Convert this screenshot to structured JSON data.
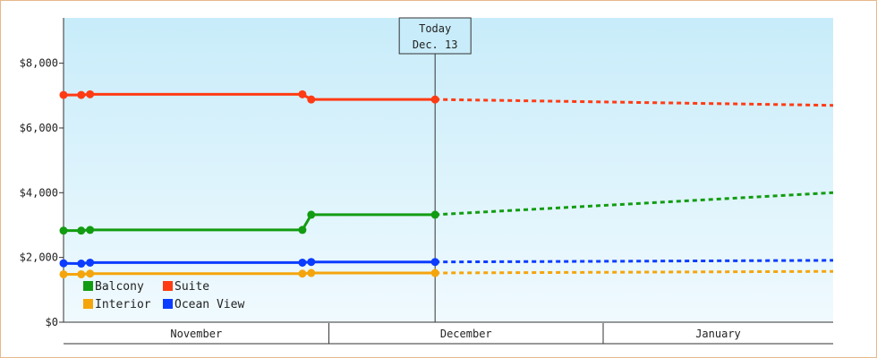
{
  "chart_data": {
    "type": "line",
    "x_axis": {
      "months": [
        {
          "label": "November",
          "start": "2023-11-01",
          "end": "2023-11-30"
        },
        {
          "label": "December",
          "start": "2023-12-01",
          "end": "2023-12-31"
        },
        {
          "label": "January",
          "start": "2024-01-01",
          "end": "2024-01-31"
        }
      ],
      "range": [
        "2023-11-01",
        "2024-01-27"
      ]
    },
    "y_axis": {
      "ylim": [
        0,
        9400
      ],
      "ticks": [
        {
          "value": 0,
          "label": "$0"
        },
        {
          "value": 2000,
          "label": "$2,000"
        },
        {
          "value": 4000,
          "label": "$4,000"
        },
        {
          "value": 6000,
          "label": "$6,000"
        },
        {
          "value": 8000,
          "label": "$8,000"
        }
      ]
    },
    "today": {
      "date": "2023-12-13",
      "line1": "Today",
      "line2": "Dec. 13"
    },
    "series": [
      {
        "name": "Suite",
        "color": "#ff3b14",
        "history": [
          [
            "2023-11-01",
            7020
          ],
          [
            "2023-11-03",
            7020
          ],
          [
            "2023-11-04",
            7040
          ],
          [
            "2023-11-28",
            7040
          ],
          [
            "2023-11-29",
            6880
          ],
          [
            "2023-12-13",
            6880
          ]
        ],
        "forecast": [
          [
            "2023-12-13",
            6880
          ],
          [
            "2024-01-27",
            6700
          ]
        ],
        "markers": [
          "2023-11-01",
          "2023-11-03",
          "2023-11-04",
          "2023-11-28",
          "2023-11-29",
          "2023-12-13"
        ]
      },
      {
        "name": "Balcony",
        "color": "#129c12",
        "history": [
          [
            "2023-11-01",
            2830
          ],
          [
            "2023-11-03",
            2830
          ],
          [
            "2023-11-04",
            2850
          ],
          [
            "2023-11-28",
            2850
          ],
          [
            "2023-11-29",
            3320
          ],
          [
            "2023-12-13",
            3320
          ]
        ],
        "forecast": [
          [
            "2023-12-13",
            3320
          ],
          [
            "2024-01-27",
            4000
          ]
        ],
        "markers": [
          "2023-11-01",
          "2023-11-03",
          "2023-11-04",
          "2023-11-28",
          "2023-11-29",
          "2023-12-13"
        ]
      },
      {
        "name": "Ocean View",
        "color": "#0b3cff",
        "history": [
          [
            "2023-11-01",
            1820
          ],
          [
            "2023-11-03",
            1810
          ],
          [
            "2023-11-04",
            1840
          ],
          [
            "2023-11-28",
            1840
          ],
          [
            "2023-11-29",
            1860
          ],
          [
            "2023-12-13",
            1860
          ]
        ],
        "forecast": [
          [
            "2023-12-13",
            1860
          ],
          [
            "2024-01-27",
            1910
          ]
        ],
        "markers": [
          "2023-11-01",
          "2023-11-03",
          "2023-11-04",
          "2023-11-28",
          "2023-11-29",
          "2023-12-13"
        ]
      },
      {
        "name": "Interior",
        "color": "#f5a50c",
        "history": [
          [
            "2023-11-01",
            1480
          ],
          [
            "2023-11-03",
            1480
          ],
          [
            "2023-11-04",
            1500
          ],
          [
            "2023-11-28",
            1500
          ],
          [
            "2023-11-29",
            1520
          ],
          [
            "2023-12-13",
            1520
          ]
        ],
        "forecast": [
          [
            "2023-12-13",
            1520
          ],
          [
            "2024-01-27",
            1570
          ]
        ],
        "markers": [
          "2023-11-01",
          "2023-11-03",
          "2023-11-04",
          "2023-11-28",
          "2023-11-29",
          "2023-12-13"
        ]
      }
    ],
    "legend": {
      "placement": "bottom-left",
      "rows": [
        [
          {
            "name": "Balcony",
            "color": "#129c12"
          },
          {
            "name": "Suite",
            "color": "#ff3b14"
          }
        ],
        [
          {
            "name": "Interior",
            "color": "#f5a50c"
          },
          {
            "name": "Ocean View",
            "color": "#0b3cff"
          }
        ]
      ]
    },
    "colors": {
      "background_top": "#c8ecfa",
      "background_bottom": "#f0fafe",
      "frame_border": "#e8b88a",
      "axis": "#333333"
    }
  }
}
